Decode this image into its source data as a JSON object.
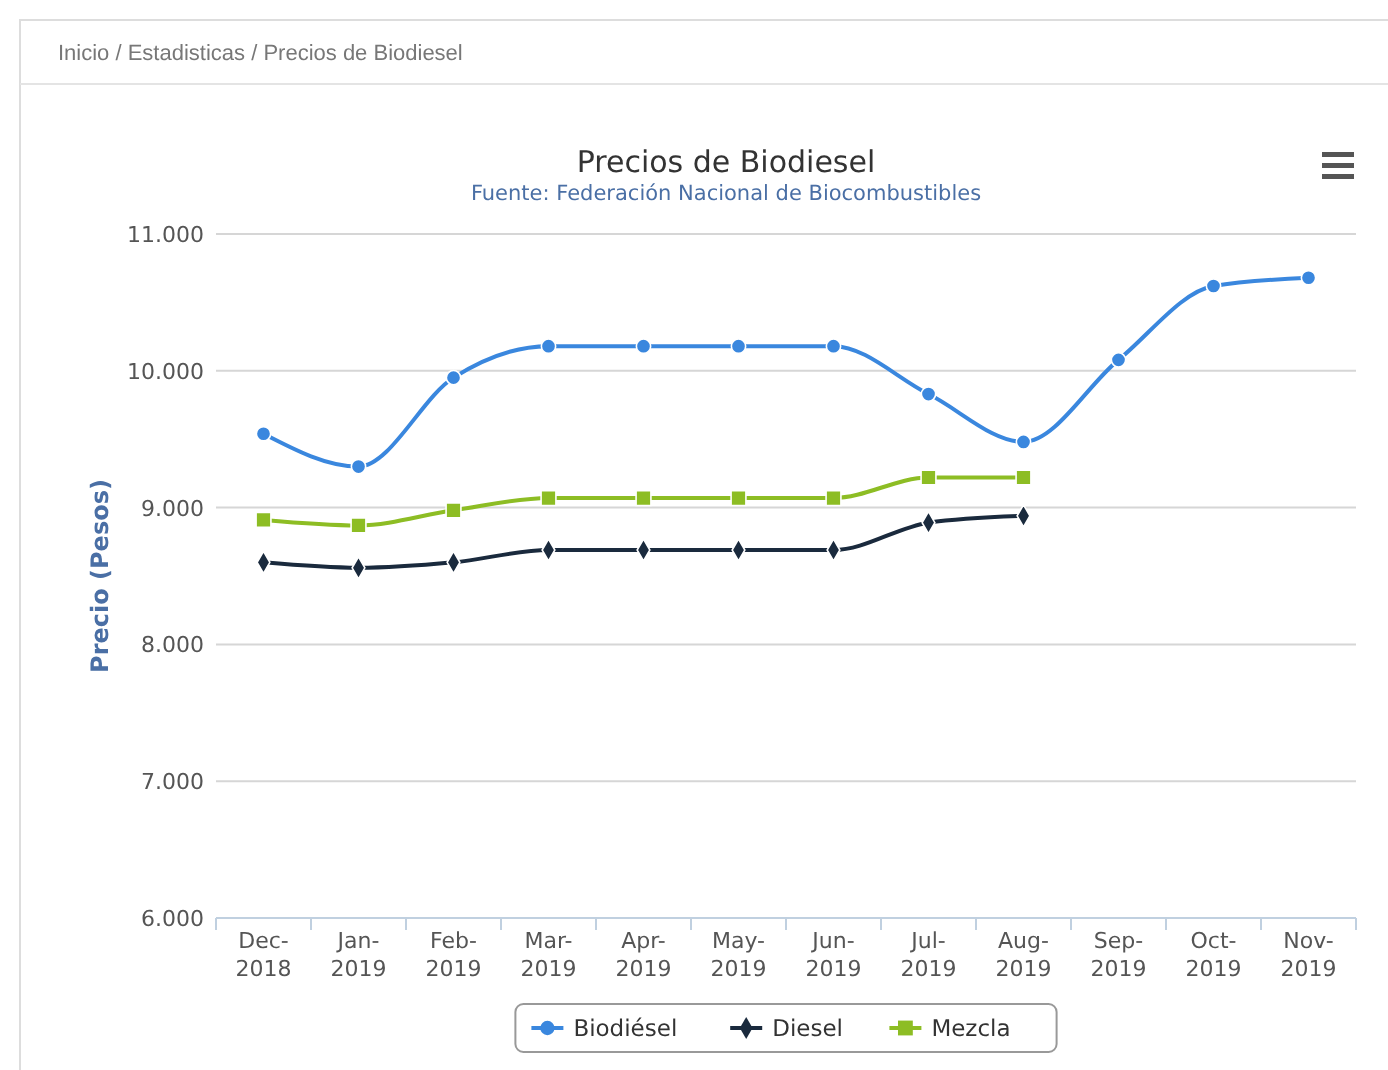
{
  "chart_data": {
    "type": "line",
    "title": "Precios de Biodiesel",
    "subtitle": "Fuente: Federación Nacional de Biocombustibles",
    "ylabel": "Precio (Pesos)",
    "annotations": [
      "Inicio / Estadisticas / Precios de Biodiesel"
    ],
    "categories": [
      "Dec-2018",
      "Jan-2019",
      "Feb-2019",
      "Mar-2019",
      "Apr-2019",
      "May-2019",
      "Jun-2019",
      "Jul-2019",
      "Aug-2019",
      "Sep-2019",
      "Oct-2019",
      "Nov-2019"
    ],
    "series": [
      {
        "name": "Biodiésel",
        "color": "#3a87de",
        "marker": "circle",
        "values": [
          9540,
          9300,
          9950,
          10180,
          10180,
          10180,
          10180,
          9830,
          9480,
          10080,
          10620,
          10680
        ]
      },
      {
        "name": "Diesel",
        "color": "#1a2a3d",
        "marker": "diamond",
        "values": [
          8600,
          8560,
          8600,
          8690,
          8690,
          8690,
          8690,
          8890,
          8940,
          null,
          null,
          null
        ]
      },
      {
        "name": "Mezcla",
        "color": "#8dbd24",
        "marker": "square",
        "values": [
          8910,
          8870,
          8980,
          9070,
          9070,
          9070,
          9070,
          9220,
          9220,
          null,
          null,
          null
        ]
      }
    ],
    "ylim": [
      6000,
      11000
    ],
    "yticks": [
      {
        "value": 6000,
        "label": "6.000"
      },
      {
        "value": 7000,
        "label": "7.000"
      },
      {
        "value": 8000,
        "label": "8.000"
      },
      {
        "value": 9000,
        "label": "9.000"
      },
      {
        "value": 10000,
        "label": "10.000"
      },
      {
        "value": 11000,
        "label": "11.000"
      }
    ],
    "grid": "y",
    "legend": "bottom"
  }
}
